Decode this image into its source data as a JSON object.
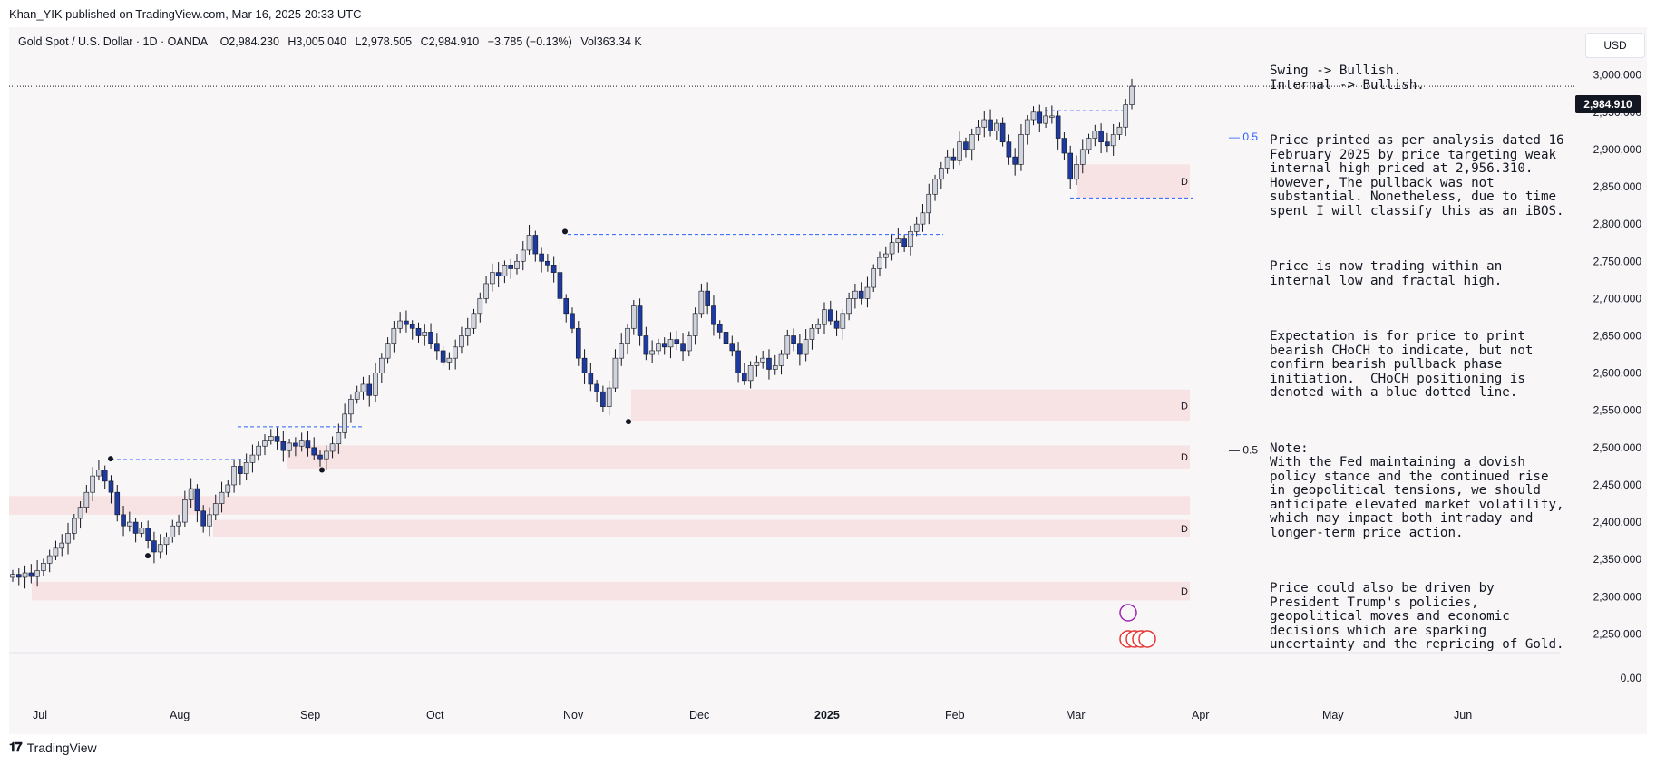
{
  "header": {
    "publisher_line": "Khan_YIK published on TradingView.com, Mar 16, 2025 20:33 UTC"
  },
  "legend": {
    "symbol": "Gold Spot / U.S. Dollar · 1D · OANDA",
    "open": "O2,984.230",
    "high": "H3,005.040",
    "low": "L2,978.505",
    "close": "C2,984.910",
    "change": "−3.785 (−0.13%)",
    "volume": "Vol363.34 K"
  },
  "currency_button": "USD",
  "last_price_label": "2,984.910",
  "footer": {
    "brand": "TradingView"
  },
  "colors": {
    "bull": "#d1d4dc",
    "bear": "#1e3a9e",
    "zone": "#f7e3e4",
    "annot": "#2962ff"
  },
  "chart_data": {
    "type": "candlestick",
    "y_axis_ticks": [
      "3,000.000",
      "2,950.000",
      "2,900.000",
      "2,850.000",
      "2,800.000",
      "2,750.000",
      "2,700.000",
      "2,650.000",
      "2,600.000",
      "2,550.000",
      "2,500.000",
      "2,450.000",
      "2,400.000",
      "2,350.000",
      "2,300.000",
      "2,250.000"
    ],
    "volume_axis_tick": "0.00",
    "x_axis_labels": [
      "Jul",
      "Aug",
      "Sep",
      "Oct",
      "Nov",
      "Dec",
      "2025",
      "Feb",
      "Mar",
      "Apr",
      "May",
      "Jun"
    ],
    "ylim": [
      2225,
      3030
    ],
    "last_price": 2984.91,
    "demand_zones": [
      {
        "top": 2880,
        "bottom": 2835,
        "label": "D"
      },
      {
        "top": 2578,
        "bottom": 2535,
        "label": "D"
      },
      {
        "top": 2503,
        "bottom": 2472,
        "label": "D"
      },
      {
        "top": 2403,
        "bottom": 2380,
        "label": "D"
      },
      {
        "top": 2320,
        "bottom": 2295,
        "label": "D"
      },
      {
        "top": 2435,
        "bottom": 2410,
        "label": ""
      }
    ],
    "fib_labels": [
      {
        "price": 2917,
        "label": "— 0.5"
      },
      {
        "price": 2497,
        "label": "— 0.5"
      }
    ],
    "closes": [
      2330,
      2326,
      2332,
      2327,
      2335,
      2345,
      2355,
      2365,
      2372,
      2385,
      2405,
      2420,
      2440,
      2462,
      2470,
      2455,
      2440,
      2410,
      2395,
      2400,
      2385,
      2392,
      2375,
      2360,
      2370,
      2380,
      2395,
      2400,
      2430,
      2445,
      2415,
      2395,
      2410,
      2425,
      2440,
      2450,
      2475,
      2465,
      2480,
      2490,
      2502,
      2510,
      2515,
      2508,
      2496,
      2506,
      2502,
      2510,
      2500,
      2490,
      2485,
      2495,
      2505,
      2520,
      2545,
      2565,
      2575,
      2585,
      2570,
      2600,
      2620,
      2640,
      2660,
      2670,
      2665,
      2660,
      2650,
      2655,
      2640,
      2630,
      2615,
      2620,
      2635,
      2650,
      2660,
      2680,
      2700,
      2720,
      2735,
      2730,
      2745,
      2740,
      2750,
      2765,
      2785,
      2760,
      2750,
      2745,
      2735,
      2700,
      2680,
      2660,
      2620,
      2600,
      2585,
      2575,
      2555,
      2580,
      2620,
      2640,
      2660,
      2690,
      2650,
      2625,
      2630,
      2640,
      2635,
      2645,
      2640,
      2630,
      2650,
      2680,
      2710,
      2690,
      2665,
      2655,
      2640,
      2630,
      2600,
      2590,
      2610,
      2615,
      2620,
      2605,
      2610,
      2625,
      2650,
      2640,
      2625,
      2645,
      2660,
      2665,
      2685,
      2670,
      2660,
      2680,
      2700,
      2710,
      2700,
      2715,
      2740,
      2755,
      2760,
      2775,
      2780,
      2770,
      2790,
      2800,
      2815,
      2840,
      2860,
      2875,
      2890,
      2885,
      2910,
      2900,
      2920,
      2930,
      2940,
      2925,
      2935,
      2910,
      2890,
      2880,
      2920,
      2940,
      2950,
      2935,
      2945,
      2945,
      2915,
      2895,
      2860,
      2880,
      2900,
      2915,
      2925,
      2910,
      2905,
      2920,
      2930,
      2960,
      2984.91
    ]
  },
  "analysis_note": {
    "p1": "Swing -> Bullish.\nInternal -> Bullish.",
    "p2": "Price printed as per analysis dated 16 February 2025 by price targeting weak internal high priced at 2,956.310. However, The pullback was not substantial. Nonetheless, due to time spent I will classify this as an iBOS.",
    "p3": "Price is now trading within an internal low and fractal high.",
    "p4": "Expectation is for price to print bearish CHoCH to indicate, but not confirm bearish pullback phase initiation.  CHoCH positioning is denoted with a blue dotted line.",
    "p5": "Note:\nWith the Fed maintaining a dovish policy stance and the continued rise in geopolitical tensions, we should anticipate elevated market volatility, which may impact both intraday and longer-term price action.",
    "p6": "Price could also be driven by President Trump's policies, geopolitical moves and economic decisions which are sparking uncertainty and the repricing of Gold."
  }
}
